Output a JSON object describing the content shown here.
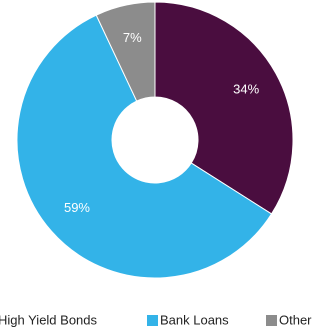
{
  "chart_data": {
    "type": "pie",
    "style": "donut",
    "categories": [
      "High Yield Bonds",
      "Bank Loans",
      "Other"
    ],
    "values": [
      34,
      59,
      7
    ],
    "value_labels": [
      "34%",
      "59%",
      "7%"
    ],
    "colors": [
      "#4a0d3f",
      "#33b3e8",
      "#8c8c8c"
    ],
    "legend_position": "bottom"
  }
}
